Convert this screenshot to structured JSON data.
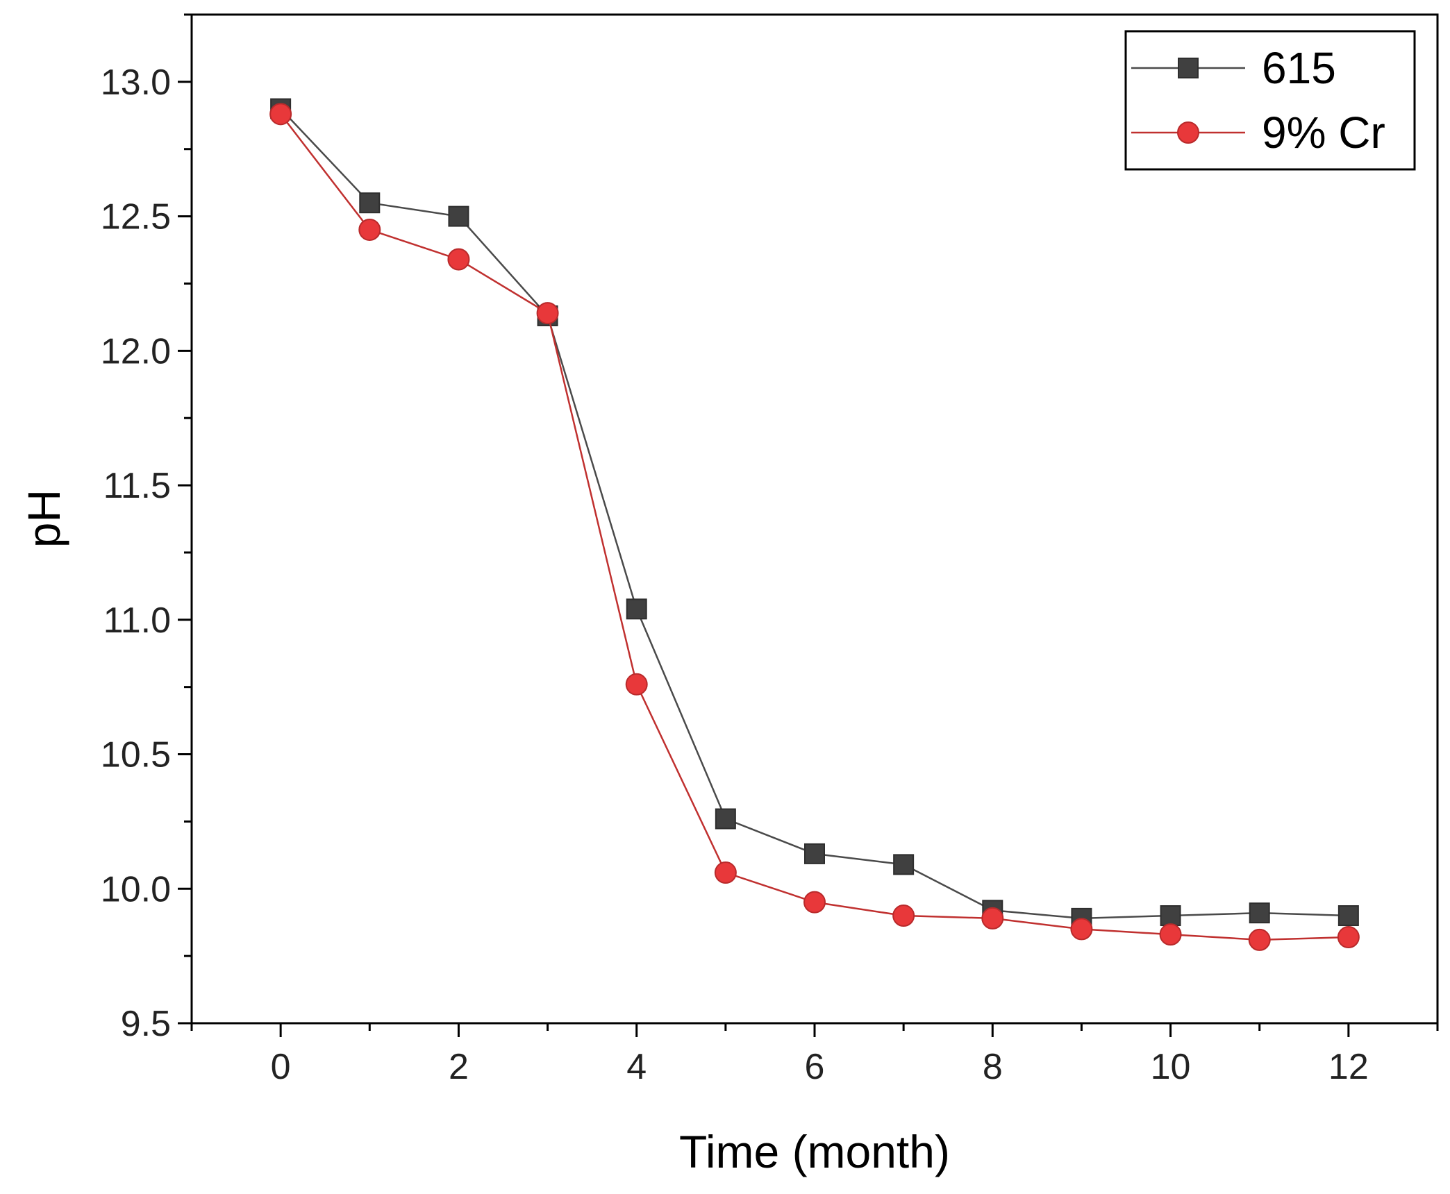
{
  "chart_data": {
    "type": "line",
    "title": "",
    "xlabel": "Time (month)",
    "ylabel": "pH",
    "xlim": [
      -1,
      13
    ],
    "ylim": [
      9.5,
      13.25
    ],
    "x_ticks": [
      0,
      2,
      4,
      6,
      8,
      10,
      12
    ],
    "x_tick_labels": [
      "0",
      "2",
      "4",
      "6",
      "8",
      "10",
      "12"
    ],
    "y_ticks": [
      9.5,
      10.0,
      10.5,
      11.0,
      11.5,
      12.0,
      12.5,
      13.0
    ],
    "y_tick_labels": [
      "9.5",
      "10.0",
      "10.5",
      "11.0",
      "11.5",
      "12.0",
      "12.5",
      "13.0"
    ],
    "grid": false,
    "legend_position": "top-right",
    "x": [
      0,
      1,
      2,
      3,
      4,
      5,
      6,
      7,
      8,
      9,
      10,
      11,
      12
    ],
    "series": [
      {
        "name": "615",
        "marker": "square",
        "color": "#404040",
        "line_color": "#4a4a4a",
        "values": [
          12.9,
          12.55,
          12.5,
          12.13,
          11.04,
          10.26,
          10.13,
          10.09,
          9.92,
          9.89,
          9.9,
          9.91,
          9.9
        ]
      },
      {
        "name": "9% Cr",
        "marker": "circle",
        "color": "#e8383a",
        "line_color": "#c0302f",
        "values": [
          12.88,
          12.45,
          12.34,
          12.14,
          10.76,
          10.06,
          9.95,
          9.9,
          9.89,
          9.85,
          9.83,
          9.81,
          9.82
        ]
      }
    ]
  }
}
